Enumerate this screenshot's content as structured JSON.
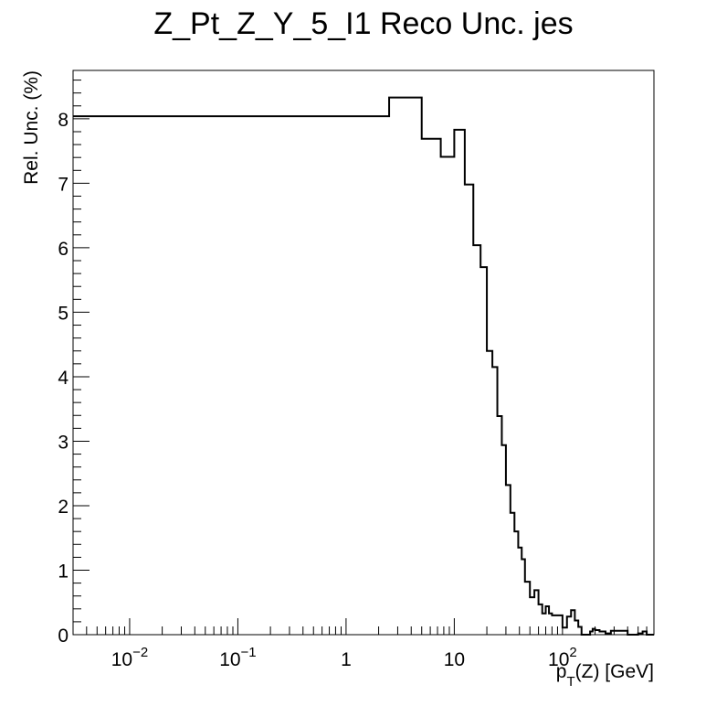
{
  "chart_data": {
    "type": "line",
    "style": "step-histogram",
    "title": "Z_Pt_Z_Y_5_I1 Reco Unc. jes",
    "ylabel": "Rel. Unc. (%)",
    "xlabel": {
      "main": "p",
      "sub": "T",
      "rest": "(Z) [GeV]"
    },
    "x_scale": "log",
    "xlim": [
      0.003,
      700
    ],
    "ylim": [
      0,
      8.75
    ],
    "grid": false,
    "line_color": "#000000",
    "x_ticks": [
      {
        "value": 0.01,
        "base": "10",
        "exp": "−2"
      },
      {
        "value": 0.1,
        "base": "10",
        "exp": "−1"
      },
      {
        "value": 1,
        "base": "1",
        "exp": ""
      },
      {
        "value": 10,
        "base": "10",
        "exp": ""
      },
      {
        "value": 100,
        "base": "10",
        "exp": "2"
      }
    ],
    "y_ticks": [
      0,
      1,
      2,
      3,
      4,
      5,
      6,
      7,
      8
    ],
    "bin_edges": [
      0.003,
      2.5,
      5,
      7.5,
      10,
      12.5,
      15,
      17.5,
      20,
      22.5,
      25,
      27.5,
      30,
      33,
      36,
      39,
      42,
      45,
      50,
      55,
      60,
      65,
      70,
      75,
      80,
      85,
      90,
      100,
      110,
      120,
      130,
      140,
      150,
      160,
      170,
      180,
      190,
      200,
      220,
      250,
      280,
      310,
      350,
      400,
      450,
      500,
      550,
      600,
      650,
      700
    ],
    "values": [
      8.04,
      8.33,
      7.69,
      7.41,
      7.83,
      6.98,
      6.04,
      5.7,
      4.4,
      4.15,
      3.39,
      2.94,
      2.32,
      1.89,
      1.6,
      1.35,
      1.17,
      0.82,
      0.58,
      0.69,
      0.47,
      0.33,
      0.44,
      0.33,
      0.3,
      0.3,
      0.3,
      0.11,
      0.28,
      0.38,
      0.22,
      0.12,
      0.0,
      0.0,
      0.0,
      0.05,
      0.09,
      0.07,
      0.05,
      0.02,
      0.06,
      0.06,
      0.06,
      0.0,
      0.0,
      0.02,
      0.05,
      0.0,
      0.0
    ]
  }
}
